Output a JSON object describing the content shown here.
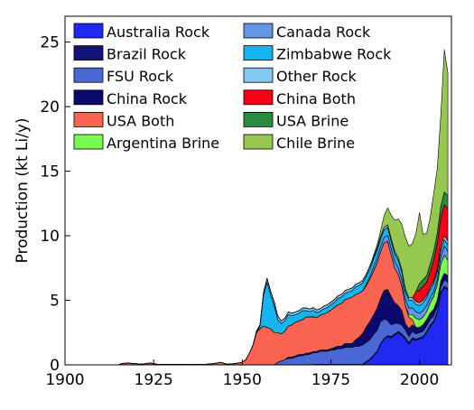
{
  "chart_data": {
    "type": "area",
    "stacked": true,
    "title": "",
    "xlabel": "",
    "ylabel": "Production (kt Li/y)",
    "xlim": [
      1900,
      2009
    ],
    "ylim": [
      0,
      27
    ],
    "xticks": [
      1900,
      1925,
      1950,
      1975,
      2000
    ],
    "yticks": [
      0,
      5,
      10,
      15,
      20,
      25
    ],
    "grid": false,
    "legend": {
      "placement": "top-left",
      "columns": 2
    },
    "x": [
      1900,
      1915,
      1916,
      1918,
      1919,
      1920,
      1921,
      1923,
      1924,
      1925,
      1926,
      1927,
      1929,
      1930,
      1935,
      1936,
      1938,
      1940,
      1942,
      1943,
      1944,
      1945,
      1946,
      1948,
      1950,
      1951,
      1952,
      1953,
      1954,
      1955,
      1956,
      1957,
      1958,
      1959,
      1960,
      1961,
      1962,
      1963,
      1964,
      1965,
      1966,
      1967,
      1968,
      1969,
      1970,
      1971,
      1972,
      1973,
      1974,
      1975,
      1976,
      1977,
      1978,
      1979,
      1980,
      1981,
      1982,
      1983,
      1984,
      1985,
      1986,
      1987,
      1988,
      1989,
      1990,
      1991,
      1992,
      1993,
      1994,
      1995,
      1996,
      1997,
      1998,
      1999,
      2000,
      2001,
      2002,
      2003,
      2004,
      2005,
      2006,
      2007,
      2008
    ],
    "series": [
      {
        "name": "Australia Rock",
        "color": "#1f28f0",
        "values": [
          0,
          0,
          0,
          0,
          0,
          0,
          0,
          0,
          0,
          0,
          0,
          0,
          0,
          0,
          0,
          0,
          0,
          0,
          0,
          0,
          0,
          0,
          0,
          0,
          0,
          0,
          0,
          0,
          0,
          0,
          0,
          0,
          0,
          0,
          0,
          0,
          0,
          0,
          0,
          0,
          0,
          0,
          0,
          0,
          0,
          0,
          0,
          0,
          0,
          0,
          0,
          0,
          0,
          0,
          0,
          0,
          0,
          0,
          0,
          0.2,
          0.4,
          0.7,
          1.0,
          1.6,
          2.0,
          2.2,
          2.1,
          2.3,
          2.5,
          2.3,
          2.0,
          1.6,
          2.0,
          1.9,
          2.0,
          2.1,
          2.5,
          3.0,
          3.3,
          4.0,
          5.5,
          6.0,
          5.8
        ]
      },
      {
        "name": "Brazil Rock",
        "color": "#12127a",
        "values": [
          0,
          0,
          0,
          0,
          0,
          0,
          0,
          0,
          0,
          0,
          0,
          0,
          0,
          0,
          0,
          0,
          0,
          0,
          0,
          0,
          0,
          0,
          0,
          0,
          0,
          0,
          0,
          0,
          0,
          0,
          0,
          0,
          0,
          0,
          0,
          0,
          0,
          0,
          0,
          0,
          0,
          0,
          0,
          0.02,
          0.03,
          0.05,
          0.05,
          0.05,
          0.05,
          0.05,
          0.05,
          0.05,
          0.05,
          0.05,
          0.05,
          0.05,
          0.05,
          0.05,
          0.05,
          0.05,
          0.05,
          0.05,
          0.05,
          0.05,
          0.05,
          0.05,
          0.1,
          0.1,
          0.1,
          0.1,
          0.1,
          0.1,
          0.1,
          0.1,
          0.1,
          0.1,
          0.1,
          0.1,
          0.1,
          0.1,
          0.1,
          0.1,
          0.1
        ]
      },
      {
        "name": "FSU Rock",
        "color": "#4a68d4",
        "values": [
          0,
          0,
          0,
          0,
          0,
          0,
          0,
          0,
          0,
          0,
          0,
          0,
          0,
          0,
          0,
          0,
          0,
          0,
          0,
          0,
          0,
          0,
          0,
          0,
          0,
          0,
          0,
          0,
          0,
          0,
          0,
          0,
          0,
          0,
          0.2,
          0.3,
          0.4,
          0.5,
          0.5,
          0.6,
          0.7,
          0.7,
          0.8,
          0.8,
          0.9,
          0.9,
          1.0,
          1.0,
          1.0,
          1.1,
          1.1,
          1.2,
          1.2,
          1.3,
          1.3,
          1.3,
          1.4,
          1.4,
          1.5,
          1.5,
          1.5,
          1.6,
          1.6,
          1.7,
          1.5,
          1.2,
          0.9,
          0.8,
          0.6,
          0.7,
          0.6,
          0.5,
          0.5,
          0.4,
          0.4,
          0.4,
          0.4,
          0.4,
          0.4,
          0.4,
          0.4,
          0.5,
          0.5
        ]
      },
      {
        "name": "China Rock",
        "color": "#0a0a6e",
        "values": [
          0,
          0,
          0,
          0,
          0,
          0,
          0,
          0,
          0,
          0,
          0,
          0,
          0,
          0,
          0,
          0,
          0,
          0,
          0,
          0,
          0,
          0,
          0,
          0,
          0,
          0,
          0,
          0,
          0,
          0,
          0,
          0,
          0,
          0,
          0,
          0,
          0,
          0.1,
          0.1,
          0.1,
          0.1,
          0.1,
          0.1,
          0.1,
          0.1,
          0.1,
          0.1,
          0.1,
          0.1,
          0.1,
          0.2,
          0.2,
          0.2,
          0.3,
          0.3,
          0.3,
          0.5,
          0.7,
          0.9,
          1.2,
          1.4,
          1.5,
          1.7,
          1.8,
          2.2,
          2.4,
          2.2,
          1.6,
          1.4,
          1.1,
          0.5,
          0.6,
          0.5,
          0.5,
          0.4,
          0.5,
          0.5,
          0.5,
          0.5,
          0.5,
          0.5,
          0.5,
          0.5
        ]
      },
      {
        "name": "USA Both",
        "color": "#fa6450",
        "values": [
          0,
          0,
          0.1,
          0.15,
          0.1,
          0.1,
          0.05,
          0.1,
          0.15,
          0.1,
          0.05,
          0.05,
          0.05,
          0.05,
          0.02,
          0.05,
          0.05,
          0.05,
          0.1,
          0.15,
          0.2,
          0.1,
          0.05,
          0.1,
          0.2,
          0.4,
          0.9,
          1.5,
          2.5,
          2.8,
          3.0,
          2.9,
          2.8,
          2.5,
          2.3,
          2.1,
          2.2,
          2.4,
          2.5,
          2.6,
          2.6,
          2.7,
          2.8,
          2.8,
          2.7,
          2.6,
          2.7,
          2.8,
          2.9,
          3.0,
          3.1,
          3.2,
          3.3,
          3.4,
          3.5,
          3.6,
          3.5,
          3.4,
          3.3,
          3.2,
          3.3,
          3.4,
          3.5,
          3.6,
          3.7,
          3.7,
          3.2,
          2.7,
          2.4,
          1.9,
          1.4,
          0.9,
          0.4,
          0.0,
          0.0,
          0.0,
          0.0,
          0.0,
          0.0,
          0.0,
          0.0,
          0.0,
          0.0
        ]
      },
      {
        "name": "Argentina Brine",
        "color": "#78fa50",
        "values": [
          0,
          0,
          0,
          0,
          0,
          0,
          0,
          0,
          0,
          0,
          0,
          0,
          0,
          0,
          0,
          0,
          0,
          0,
          0,
          0,
          0,
          0,
          0,
          0,
          0,
          0,
          0,
          0,
          0,
          0,
          0,
          0,
          0,
          0,
          0,
          0,
          0,
          0,
          0,
          0,
          0,
          0,
          0,
          0,
          0,
          0,
          0,
          0,
          0,
          0,
          0,
          0,
          0,
          0,
          0,
          0,
          0,
          0,
          0,
          0,
          0,
          0,
          0,
          0,
          0,
          0,
          0,
          0,
          0,
          0,
          0,
          0.2,
          0.4,
          0.7,
          0.6,
          0.6,
          0.6,
          0.8,
          1.0,
          1.2,
          1.3,
          1.4,
          1.2
        ]
      },
      {
        "name": "Canada Rock",
        "color": "#6496e6",
        "values": [
          0,
          0,
          0,
          0,
          0,
          0,
          0,
          0,
          0,
          0,
          0,
          0,
          0,
          0,
          0,
          0,
          0,
          0,
          0,
          0,
          0,
          0,
          0,
          0,
          0,
          0,
          0,
          0,
          0,
          0,
          0,
          0,
          0,
          0,
          0,
          0,
          0,
          0,
          0,
          0,
          0,
          0,
          0,
          0,
          0,
          0,
          0,
          0,
          0,
          0,
          0,
          0,
          0,
          0,
          0,
          0,
          0,
          0,
          0,
          0.1,
          0.2,
          0.3,
          0.4,
          0.4,
          0.4,
          0.5,
          0.5,
          0.5,
          0.5,
          0.5,
          0.5,
          0.5,
          0.5,
          0.5,
          0.5,
          0.5,
          0.5,
          0.4,
          0.4,
          0.4,
          0.6,
          0.7,
          0.7
        ]
      },
      {
        "name": "Zimbabwe Rock",
        "color": "#14b4f0",
        "values": [
          0,
          0,
          0,
          0,
          0,
          0,
          0,
          0,
          0,
          0,
          0,
          0,
          0,
          0,
          0,
          0,
          0,
          0,
          0,
          0,
          0,
          0,
          0,
          0,
          0,
          0,
          0,
          0,
          0,
          0.2,
          2.4,
          3.5,
          2.6,
          2.1,
          1.0,
          0.8,
          0.8,
          0.9,
          0.7,
          0.6,
          0.6,
          0.7,
          0.5,
          0.4,
          0.5,
          0.4,
          0.3,
          0.4,
          0.4,
          0.4,
          0.4,
          0.5,
          0.5,
          0.5,
          0.5,
          0.5,
          0.6,
          0.6,
          0.6,
          0.6,
          0.6,
          0.6,
          0.6,
          0.6,
          0.6,
          0.6,
          0.6,
          0.6,
          0.6,
          0.6,
          0.6,
          0.6,
          0.6,
          0.6,
          0.6,
          0.6,
          0.6,
          0.6,
          0.6,
          0.6,
          0.5,
          0.5,
          0.5
        ]
      },
      {
        "name": "Other Rock",
        "color": "#82c8f0",
        "values": [
          0,
          0,
          0,
          0,
          0,
          0,
          0,
          0,
          0,
          0,
          0,
          0,
          0,
          0,
          0,
          0,
          0,
          0,
          0,
          0,
          0,
          0,
          0,
          0,
          0,
          0,
          0,
          0,
          0.1,
          0.1,
          0.2,
          0.3,
          0.3,
          0.3,
          0.3,
          0.2,
          0.2,
          0.2,
          0.2,
          0.2,
          0.2,
          0.2,
          0.2,
          0.2,
          0.2,
          0.2,
          0.2,
          0.2,
          0.2,
          0.2,
          0.2,
          0.2,
          0.2,
          0.2,
          0.2,
          0.2,
          0.2,
          0.2,
          0.2,
          0.2,
          0.2,
          0.2,
          0.2,
          0.2,
          0.2,
          0.2,
          0.2,
          0.2,
          0.2,
          0.2,
          0.2,
          0.2,
          0.2,
          0.2,
          0.2,
          0.2,
          0.2,
          0.2,
          0.2,
          0.2,
          0.3,
          0.3,
          0.3
        ]
      },
      {
        "name": "China Both",
        "color": "#fa0014",
        "values": [
          0,
          0,
          0,
          0,
          0,
          0,
          0,
          0,
          0,
          0,
          0,
          0,
          0,
          0,
          0,
          0,
          0,
          0,
          0,
          0,
          0,
          0,
          0,
          0,
          0,
          0,
          0,
          0,
          0,
          0,
          0,
          0,
          0,
          0,
          0,
          0,
          0,
          0,
          0,
          0,
          0,
          0,
          0,
          0,
          0,
          0,
          0,
          0,
          0,
          0,
          0,
          0,
          0,
          0,
          0,
          0,
          0,
          0,
          0,
          0,
          0,
          0,
          0,
          0,
          0,
          0,
          0,
          0,
          0,
          0,
          0,
          0,
          0,
          0.8,
          1.0,
          1.1,
          1.0,
          1.2,
          1.6,
          2.0,
          2.2,
          2.4,
          2.5
        ]
      },
      {
        "name": "USA Brine",
        "color": "#288c3c",
        "values": [
          0,
          0,
          0,
          0,
          0,
          0,
          0,
          0,
          0,
          0,
          0,
          0,
          0,
          0,
          0,
          0,
          0,
          0,
          0,
          0,
          0,
          0,
          0,
          0,
          0,
          0,
          0,
          0,
          0,
          0,
          0,
          0,
          0,
          0,
          0,
          0,
          0,
          0,
          0,
          0,
          0,
          0,
          0,
          0,
          0,
          0,
          0,
          0,
          0,
          0,
          0,
          0,
          0,
          0,
          0,
          0,
          0,
          0,
          0,
          0,
          0,
          0,
          0,
          0,
          0,
          0,
          0,
          0,
          0,
          0,
          0,
          0,
          0,
          0,
          0.5,
          0.5,
          0.5,
          0.6,
          0.7,
          0.8,
          0.9,
          1.0,
          1.0
        ]
      },
      {
        "name": "Chile Brine",
        "color": "#96c850",
        "values": [
          0,
          0,
          0,
          0,
          0,
          0,
          0,
          0,
          0,
          0,
          0,
          0,
          0,
          0,
          0,
          0,
          0,
          0,
          0,
          0,
          0,
          0,
          0,
          0,
          0,
          0,
          0,
          0,
          0,
          0,
          0,
          0,
          0,
          0,
          0,
          0,
          0,
          0,
          0,
          0,
          0,
          0,
          0,
          0,
          0,
          0,
          0,
          0,
          0,
          0,
          0,
          0,
          0,
          0,
          0,
          0,
          0,
          0,
          0,
          0,
          0,
          0.1,
          0.2,
          0.4,
          0.9,
          1.3,
          1.8,
          2.4,
          3.0,
          3.5,
          4.0,
          4.0,
          4.2,
          4.5,
          5.5,
          3.5,
          3.3,
          3.6,
          4.5,
          5.0,
          7.0,
          11.0,
          9.5
        ]
      }
    ]
  }
}
